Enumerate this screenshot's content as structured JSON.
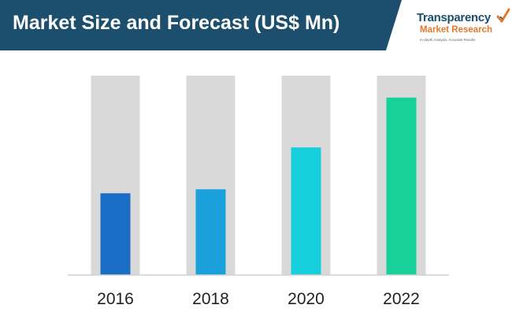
{
  "header": {
    "title": "Market Size and Forecast (US$ Mn)",
    "bar_color": "#1c4f6d"
  },
  "logo": {
    "line1": "Transparency",
    "line2": "Market Research",
    "line3": "In-depth Analysis. Accurate Results",
    "icon": "checkmark-logo-icon"
  },
  "chart_data": {
    "type": "bar",
    "categories": [
      "2016",
      "2018",
      "2020",
      "2022"
    ],
    "values": [
      41,
      43,
      64,
      89
    ],
    "ylim": [
      0,
      100
    ],
    "colors": [
      "#1a6ec6",
      "#1aa0da",
      "#15d0dc",
      "#17d09a"
    ],
    "background_bar_color": "#d9d9d9",
    "grid": false,
    "title": "",
    "xlabel": "",
    "ylabel": ""
  }
}
